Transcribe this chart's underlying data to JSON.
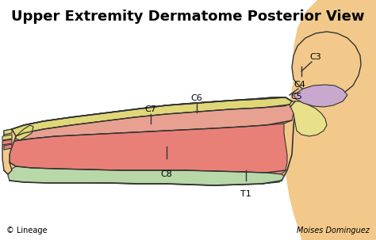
{
  "title": "Upper Extremity Dermatome Posterior View",
  "title_fontsize": 13,
  "title_weight": "bold",
  "background_color": "#ffffff",
  "footer_left": "© Lineage",
  "footer_right": "Moises Dominguez",
  "colors": {
    "skin": "#F2C98A",
    "skin_light": "#F5D5A0",
    "C4_purple": "#C9A8CE",
    "C5_yellow": "#E8E08A",
    "C6_yellow": "#E0D878",
    "C7_salmon": "#E8A090",
    "C8_red": "#E88078",
    "T1_green": "#B8D8A8",
    "outline": "#333333"
  },
  "figsize": [
    4.74,
    3.03
  ],
  "dpi": 100
}
